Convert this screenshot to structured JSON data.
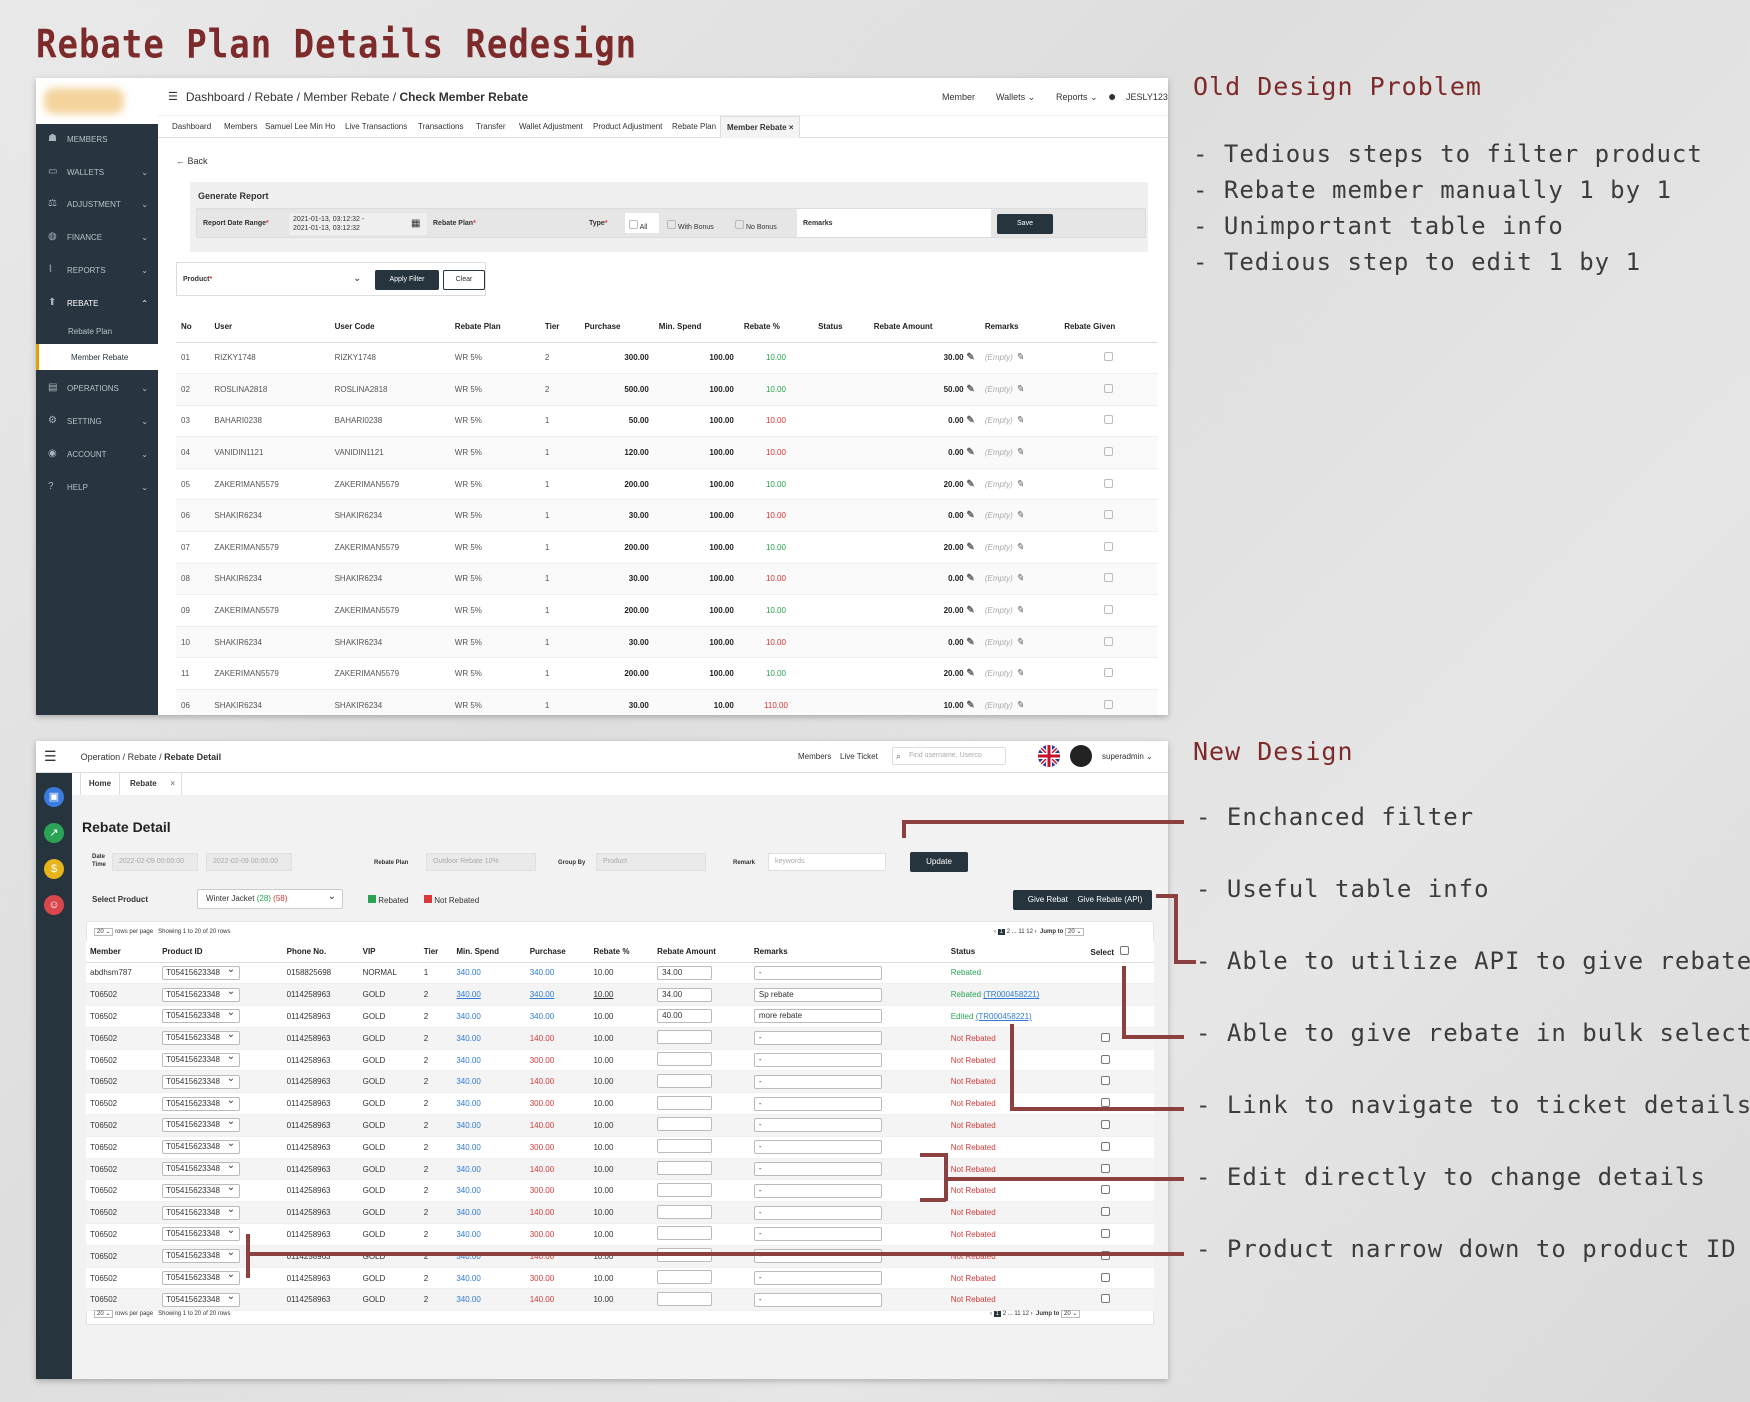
{
  "title": "Rebate Plan Details Redesign",
  "old_section": {
    "heading": "Old Design Problem",
    "problems": [
      "- Tedious steps to filter product",
      "- Rebate member manually 1 by 1",
      "- Unimportant table info",
      "- Tedious step to edit 1 by 1"
    ]
  },
  "new_section": {
    "heading": "New Design",
    "annotations": [
      "- Enchanced filter",
      "- Useful table info",
      "- Able to utilize API to give rebate",
      "- Able to give rebate in bulk selection",
      "- Link to navigate to ticket details",
      "- Edit directly to change details",
      "- Product narrow down to product ID"
    ]
  },
  "old_ui": {
    "sidebar": [
      {
        "label": "MEMBERS",
        "icon": "members-icon"
      },
      {
        "label": "WALLETS",
        "icon": "wallet-icon"
      },
      {
        "label": "ADJUSTMENT",
        "icon": "adjustment-icon"
      },
      {
        "label": "FINANCE",
        "icon": "finance-icon"
      },
      {
        "label": "REPORTS",
        "icon": "reports-icon"
      },
      {
        "label": "REBATE",
        "icon": "rebate-icon"
      },
      {
        "label": "OPERATIONS",
        "icon": "operations-icon"
      },
      {
        "label": "SETTING",
        "icon": "setting-icon"
      },
      {
        "label": "ACCOUNT",
        "icon": "account-icon"
      },
      {
        "label": "HELP",
        "icon": "help-icon"
      }
    ],
    "sub_items": [
      "Rebate Plan",
      "Member Rebate"
    ],
    "breadcrumb": [
      "Dashboard",
      "/",
      "Rebate",
      "/",
      "Member Rebate",
      "/",
      "Check Member Rebate"
    ],
    "top_links": [
      "Member",
      "Wallets",
      "Reports",
      "JESLY123"
    ],
    "tabs": [
      "Dashboard",
      "Members",
      "Samuel Lee Min Ho",
      "Live Transactions",
      "Transactions",
      "Transfer",
      "Wallet Adjustment",
      "Product Adjustment",
      "Rebate Plan",
      "Member Rebate"
    ],
    "back": "Back",
    "generate_report": "Generate Report",
    "filter": {
      "date_label": "Report Date Range",
      "date_value_1": "2021-01-13, 03:12:32 -",
      "date_value_2": "2021-01-13, 03:12:32",
      "plan_label": "Rebate Plan",
      "type_label": "Type",
      "opt_all": "All",
      "opt_bonus": "With Bonus",
      "opt_nobonus": "No Bonus",
      "remarks_label": "Remarks",
      "save": "Save",
      "product_label": "Product",
      "apply": "Apply Filter",
      "clear": "Clear"
    },
    "columns": [
      "No",
      "User",
      "User Code",
      "Rebate Plan",
      "Tier",
      "Purchase",
      "Min. Spend",
      "Rebate %",
      "Status",
      "Rebate Amount",
      "Remarks",
      "Rebate Given"
    ],
    "rows": [
      [
        "01",
        "RIZKY1748",
        "RIZKY1748",
        "WR 5%",
        "2",
        "300.00",
        "100.00",
        "10.00",
        "",
        "30.00",
        "(Empty)",
        "g"
      ],
      [
        "02",
        "ROSLINA2818",
        "ROSLINA2818",
        "WR 5%",
        "2",
        "500.00",
        "100.00",
        "10.00",
        "",
        "50.00",
        "(Empty)",
        "g"
      ],
      [
        "03",
        "BAHARI0238",
        "BAHARI0238",
        "WR 5%",
        "1",
        "50.00",
        "100.00",
        "10.00",
        "",
        "0.00",
        "(Empty)",
        "r"
      ],
      [
        "04",
        "VANIDIN1121",
        "VANIDIN1121",
        "WR 5%",
        "1",
        "120.00",
        "100.00",
        "10.00",
        "",
        "0.00",
        "(Empty)",
        "r"
      ],
      [
        "05",
        "ZAKERIMAN5579",
        "ZAKERIMAN5579",
        "WR 5%",
        "1",
        "200.00",
        "100.00",
        "10.00",
        "",
        "20.00",
        "(Empty)",
        "g"
      ],
      [
        "06",
        "SHAKIR6234",
        "SHAKIR6234",
        "WR 5%",
        "1",
        "30.00",
        "100.00",
        "10.00",
        "",
        "0.00",
        "(Empty)",
        "r"
      ],
      [
        "07",
        "ZAKERIMAN5579",
        "ZAKERIMAN5579",
        "WR 5%",
        "1",
        "200.00",
        "100.00",
        "10.00",
        "",
        "20.00",
        "(Empty)",
        "g"
      ],
      [
        "08",
        "SHAKIR6234",
        "SHAKIR6234",
        "WR 5%",
        "1",
        "30.00",
        "100.00",
        "10.00",
        "",
        "0.00",
        "(Empty)",
        "r"
      ],
      [
        "09",
        "ZAKERIMAN5579",
        "ZAKERIMAN5579",
        "WR 5%",
        "1",
        "200.00",
        "100.00",
        "10.00",
        "",
        "20.00",
        "(Empty)",
        "g"
      ],
      [
        "10",
        "SHAKIR6234",
        "SHAKIR6234",
        "WR 5%",
        "1",
        "30.00",
        "100.00",
        "10.00",
        "",
        "0.00",
        "(Empty)",
        "r"
      ],
      [
        "11",
        "ZAKERIMAN5579",
        "ZAKERIMAN5579",
        "WR 5%",
        "1",
        "200.00",
        "100.00",
        "10.00",
        "",
        "20.00",
        "(Empty)",
        "g"
      ],
      [
        "06",
        "SHAKIR6234",
        "SHAKIR6234",
        "WR 5%",
        "1",
        "30.00",
        "10.00",
        "110.00",
        "",
        "10.00",
        "(Empty)",
        "r"
      ]
    ]
  },
  "new_ui": {
    "breadcrumb_prefix": "Operation / Rebate / ",
    "breadcrumb_current": "Rebate Detail",
    "top_links": [
      "Members",
      "Live Ticket"
    ],
    "search_placeholder": "Find username, Userco",
    "user": "superadmin",
    "tabs": [
      "Home",
      "Rebate"
    ],
    "page_heading": "Rebate Detail",
    "filter": {
      "date_label_1": "Date",
      "date_label_2": "Time",
      "date_from": "2022-02-09 00:00:00",
      "date_to": "2022-02-09 00:00:00",
      "plan_label": "Rebate Plan",
      "plan_value": "Outdoor Rebate 10%",
      "group_label": "Group By",
      "group_value": "Product",
      "remark_label": "Remark",
      "remark_placeholder": "keywords",
      "update": "Update",
      "select_product": "Select Product",
      "product_name": "Winter Jacket",
      "product_count_green": "(28)",
      "product_count_red": "(58)",
      "legend_rebated": "Rebated",
      "legend_not": "Not Rebated",
      "give": "Give Rebate",
      "give_api": "Give Rebate (API)"
    },
    "pagination": {
      "per_page": "20",
      "per_page_text": "rows per page",
      "showing": "Showing 1 to 20 of 20 rows",
      "pages": [
        "‹",
        "1",
        "2",
        "...",
        "11",
        "12",
        "›"
      ],
      "jump": "Jump to",
      "jump_val": "20"
    },
    "columns": [
      "Member",
      "Product ID",
      "Phone No.",
      "VIP",
      "Tier",
      "Min. Spend",
      "Purchase",
      "Rebate %",
      "Rebate Amount",
      "Remarks",
      "Status",
      "Select"
    ],
    "rows": [
      [
        "abdhsm787",
        "T05415623348",
        "0158825698",
        "NORMAL",
        "1",
        "340.00",
        "340.00",
        "10.00",
        "34.00",
        "-",
        "Rebated",
        ""
      ],
      [
        "T06502",
        "T05415623348",
        "0114258963",
        "GOLD",
        "2",
        "340.00",
        "340.00",
        "10.00",
        "34.00",
        "Sp rebate",
        "Rebated",
        "(TR000458221)"
      ],
      [
        "T06502",
        "T05415623348",
        "0114258963",
        "GOLD",
        "2",
        "340.00",
        "340.00",
        "10.00",
        "40.00",
        "more rebate",
        "Edited",
        "(TR000458221)"
      ],
      [
        "T06502",
        "T05415623348",
        "0114258963",
        "GOLD",
        "2",
        "340.00",
        "140.00",
        "10.00",
        "",
        "-",
        "Not Rebated",
        ""
      ],
      [
        "T06502",
        "T05415623348",
        "0114258963",
        "GOLD",
        "2",
        "340.00",
        "300.00",
        "10.00",
        "",
        "-",
        "Not Rebated",
        ""
      ],
      [
        "T06502",
        "T05415623348",
        "0114258963",
        "GOLD",
        "2",
        "340.00",
        "140.00",
        "10.00",
        "",
        "-",
        "Not Rebated",
        ""
      ],
      [
        "T06502",
        "T05415623348",
        "0114258963",
        "GOLD",
        "2",
        "340.00",
        "300.00",
        "10.00",
        "",
        "-",
        "Not Rebated",
        ""
      ],
      [
        "T06502",
        "T05415623348",
        "0114258963",
        "GOLD",
        "2",
        "340.00",
        "140.00",
        "10.00",
        "",
        "-",
        "Not Rebated",
        ""
      ],
      [
        "T06502",
        "T05415623348",
        "0114258963",
        "GOLD",
        "2",
        "340.00",
        "300.00",
        "10.00",
        "",
        "-",
        "Not Rebated",
        ""
      ],
      [
        "T06502",
        "T05415623348",
        "0114258963",
        "GOLD",
        "2",
        "340.00",
        "140.00",
        "10.00",
        "",
        "-",
        "Not Rebated",
        ""
      ],
      [
        "T06502",
        "T05415623348",
        "0114258963",
        "GOLD",
        "2",
        "340.00",
        "300.00",
        "10.00",
        "",
        "-",
        "Not Rebated",
        ""
      ],
      [
        "T06502",
        "T05415623348",
        "0114258963",
        "GOLD",
        "2",
        "340.00",
        "140.00",
        "10.00",
        "",
        "-",
        "Not Rebated",
        ""
      ],
      [
        "T06502",
        "T05415623348",
        "0114258963",
        "GOLD",
        "2",
        "340.00",
        "300.00",
        "10.00",
        "",
        "-",
        "Not Rebated",
        ""
      ],
      [
        "T06502",
        "T05415623348",
        "0114258963",
        "GOLD",
        "2",
        "340.00",
        "140.00",
        "10.00",
        "",
        "-",
        "Not Rebated",
        ""
      ],
      [
        "T06502",
        "T05415623348",
        "0114258963",
        "GOLD",
        "2",
        "340.00",
        "300.00",
        "10.00",
        "",
        "-",
        "Not Rebated",
        ""
      ],
      [
        "T06502",
        "T05415623348",
        "0114258963",
        "GOLD",
        "2",
        "340.00",
        "140.00",
        "10.00",
        "",
        "-",
        "Not Rebated",
        ""
      ]
    ]
  },
  "colors": {
    "accent": "#7d2a2a",
    "sidebar": "#26343e",
    "rebated": "#2aa356",
    "not_rebated": "#d63a3a",
    "link": "#2f7ad6"
  }
}
